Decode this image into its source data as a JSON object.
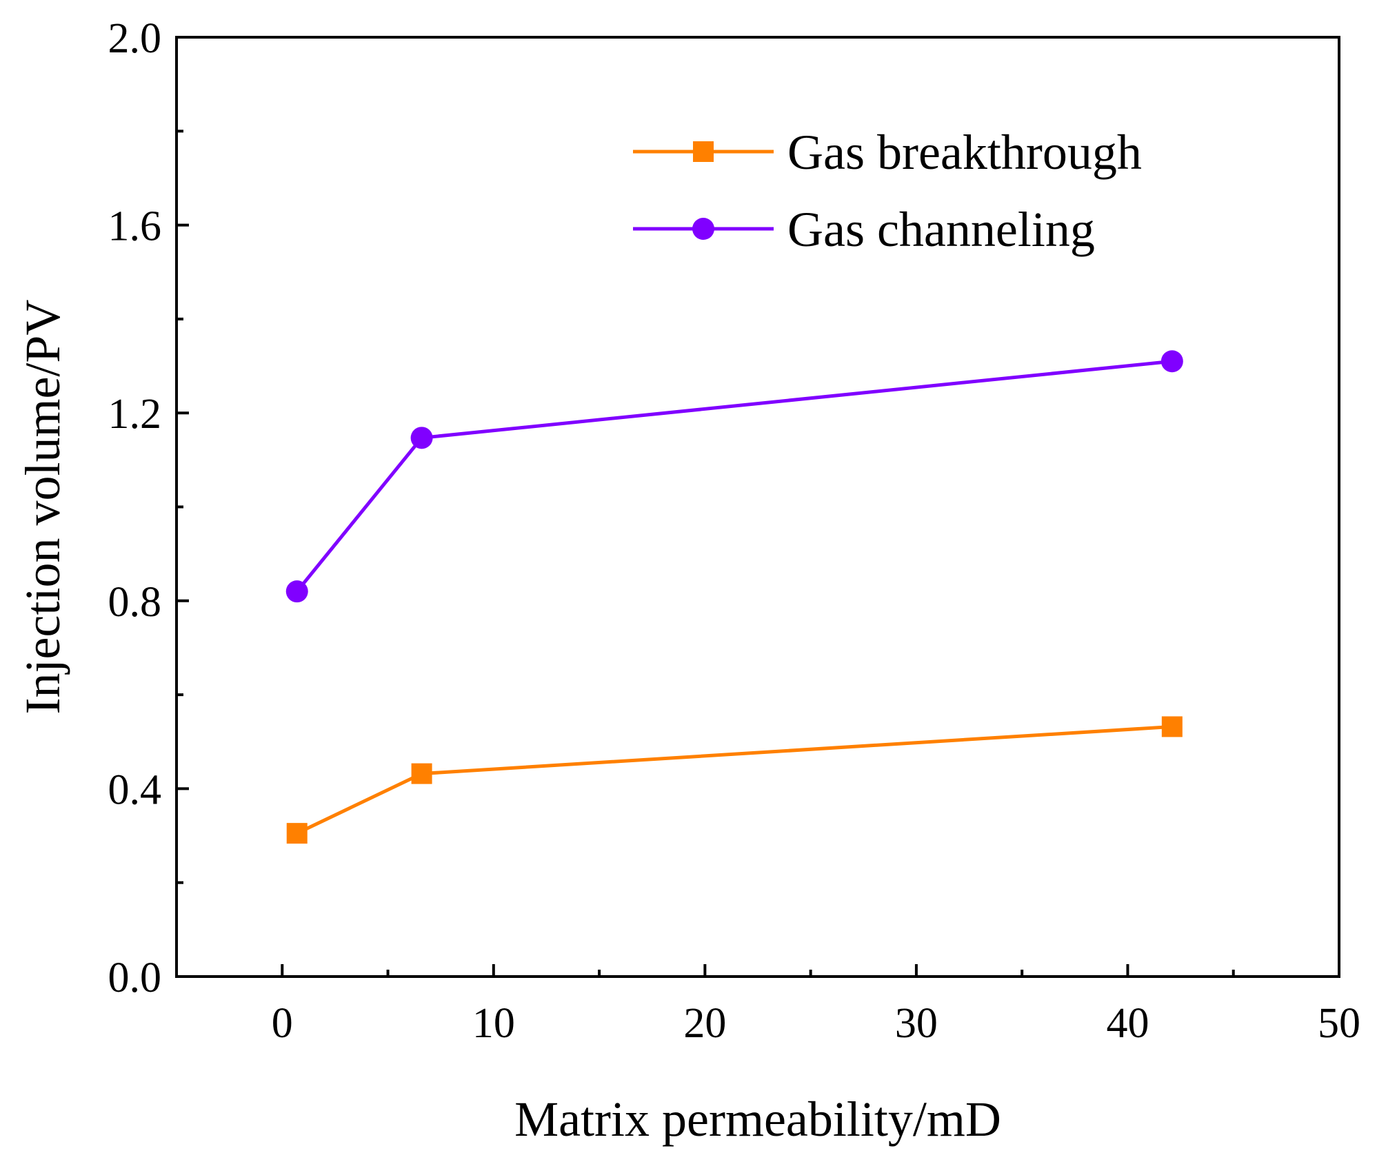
{
  "chart_data": {
    "type": "line",
    "title": "",
    "xlabel": "Matrix permeability/mD",
    "ylabel": "Injection volume/PV",
    "xlim": [
      -5,
      50
    ],
    "ylim": [
      0.0,
      2.0
    ],
    "xticks": [
      0,
      10,
      20,
      30,
      40,
      50
    ],
    "xtick_labels": [
      "0",
      "10",
      "20",
      "30",
      "40",
      "50"
    ],
    "xminor": [
      5,
      15,
      25,
      35,
      45
    ],
    "yticks": [
      0.0,
      0.4,
      0.8,
      1.2,
      1.6,
      2.0
    ],
    "ytick_labels": [
      "0.0",
      "0.4",
      "0.8",
      "1.2",
      "1.6",
      "2.0"
    ],
    "yminor": [
      0.2,
      0.6,
      1.0,
      1.4,
      1.8
    ],
    "grid": false,
    "legend_position": "top-right",
    "series": [
      {
        "name": "Gas breakthrough",
        "color": "#ff8000",
        "marker": "square",
        "x": [
          0.7,
          6.6,
          42.1
        ],
        "y": [
          0.305,
          0.432,
          0.532
        ]
      },
      {
        "name": "Gas channeling",
        "color": "#8000ff",
        "marker": "circle",
        "x": [
          0.7,
          6.6,
          42.1
        ],
        "y": [
          0.82,
          1.147,
          1.31
        ]
      }
    ]
  }
}
